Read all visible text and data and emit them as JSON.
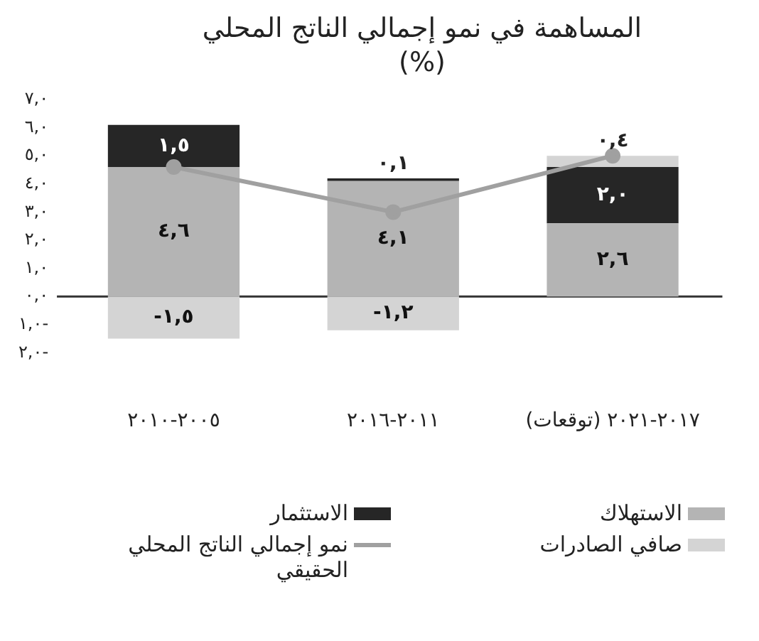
{
  "chart_data": {
    "type": "bar",
    "title": "المساهمة في نمو إجمالي الناتج المحلي\n(%)",
    "categories": [
      "٢٠٠٥-٢٠١٠",
      "٢٠١١-٢٠١٦",
      "٢٠١٧-٢٠٢١ (توقعات)"
    ],
    "series": [
      {
        "name": "الاستهلاك",
        "color": "#b4b4b4",
        "values": [
          4.6,
          4.1,
          2.6
        ],
        "value_labels": [
          "٤,٦",
          "٤,١",
          "٢,٦"
        ]
      },
      {
        "name": "الاستثمار",
        "color": "#262626",
        "values": [
          1.5,
          0.1,
          2.0
        ],
        "value_labels": [
          "١,٥",
          "٠,١",
          "٢,٠"
        ]
      },
      {
        "name": "صافي الصادرات",
        "color": "#d4d4d4",
        "values": [
          -1.5,
          -1.2,
          0.4
        ],
        "value_labels": [
          "-١,٥",
          "-١,٢",
          "٠,٤"
        ]
      },
      {
        "name": "نمو إجمالي الناتج المحلي الحقيقي",
        "type": "line",
        "color": "#a0a0a0",
        "values": [
          4.6,
          3.0,
          5.0
        ]
      }
    ],
    "stacked": true,
    "ylim": [
      -2,
      7
    ],
    "yticks": [
      {
        "value": 7,
        "label": "٧,٠"
      },
      {
        "value": 6,
        "label": "٦,٠"
      },
      {
        "value": 5,
        "label": "٥,٠"
      },
      {
        "value": 4,
        "label": "٤,٠"
      },
      {
        "value": 3,
        "label": "٣,٠"
      },
      {
        "value": 2,
        "label": "٢,٠"
      },
      {
        "value": 1,
        "label": "١,٠"
      },
      {
        "value": 0,
        "label": "٠,٠"
      },
      {
        "value": -1,
        "label": "١,٠-"
      },
      {
        "value": -2,
        "label": "٢,٠-"
      }
    ],
    "ref_lines": [
      {
        "axis": "y",
        "value": 0,
        "color": "#333333"
      }
    ],
    "grid": false,
    "legend": "bottom",
    "marker": "circle"
  }
}
